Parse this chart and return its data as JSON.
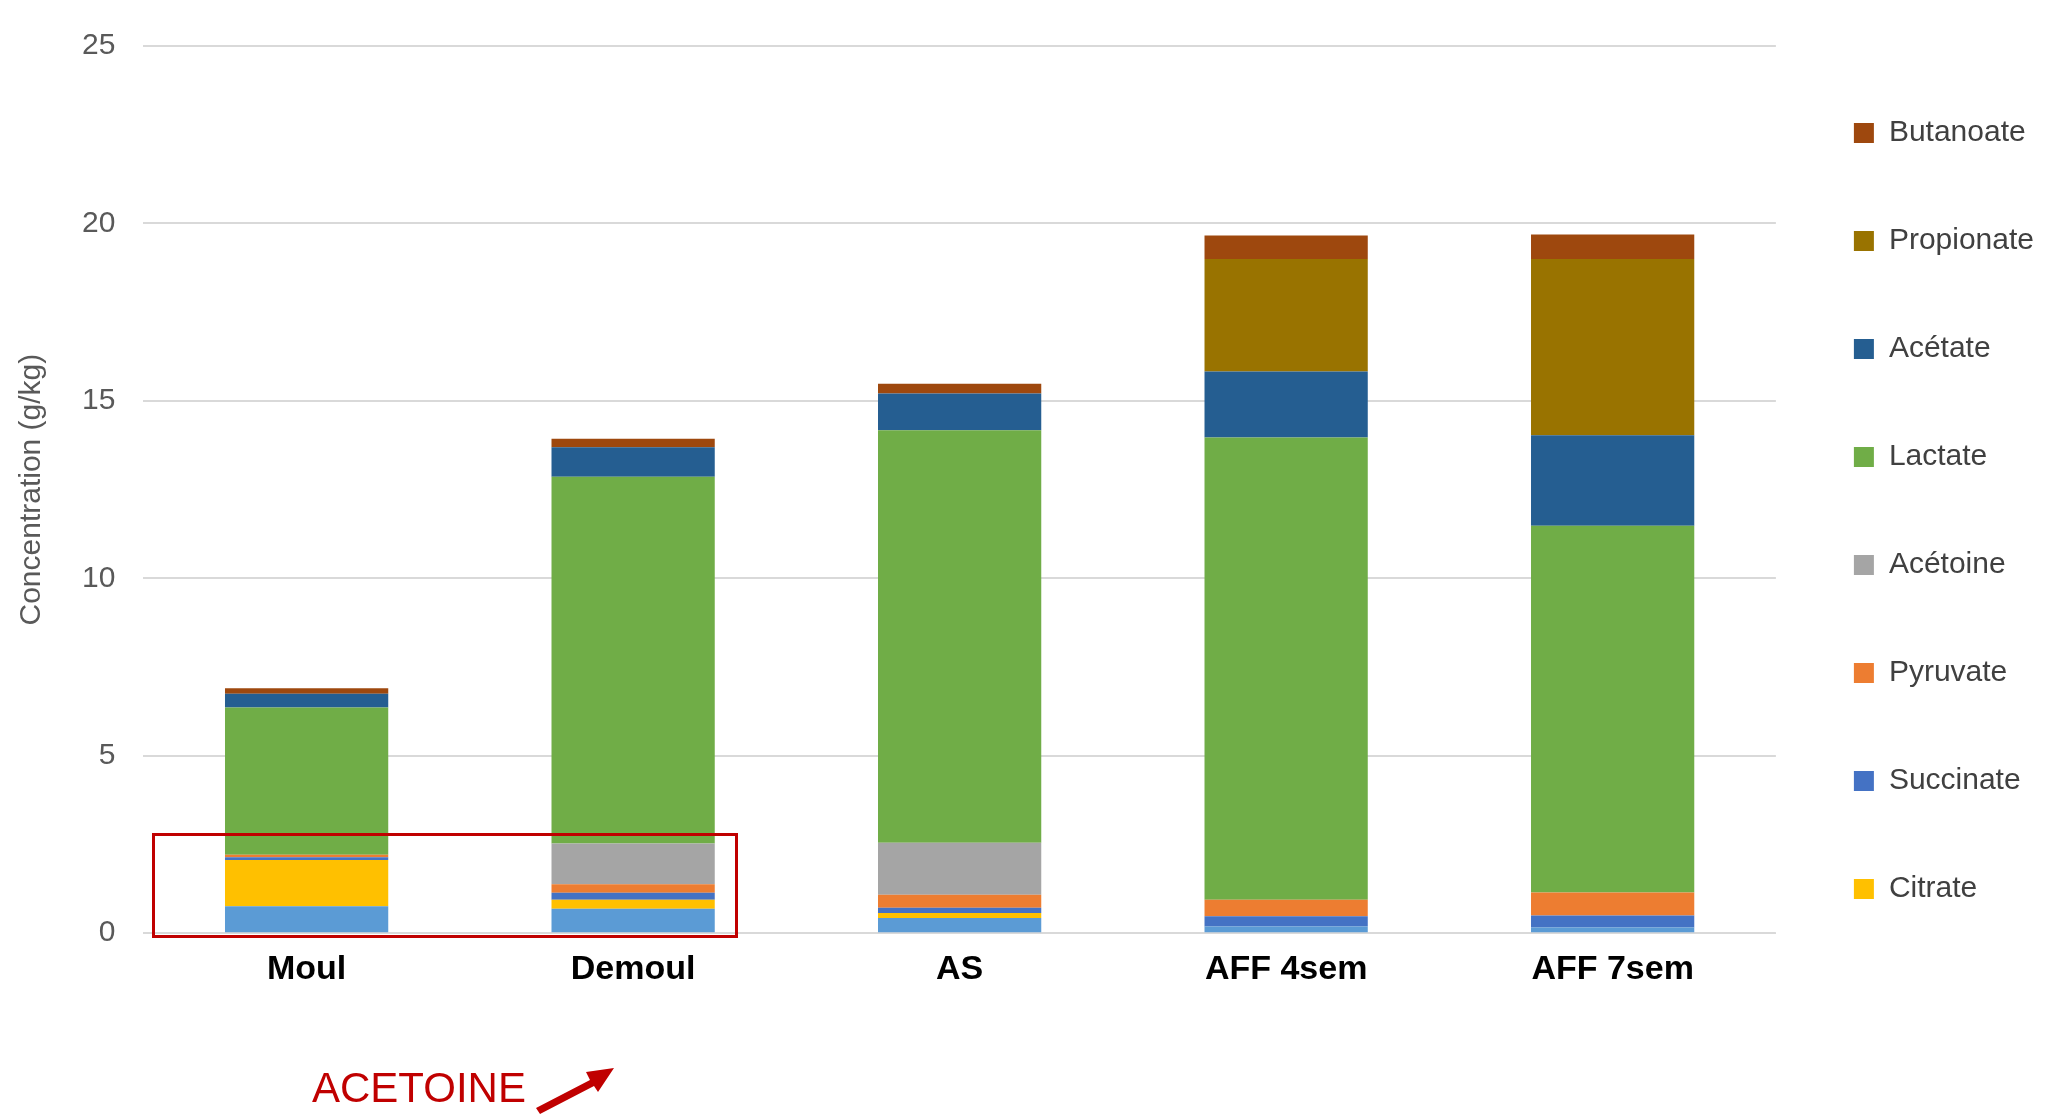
{
  "chart_data": {
    "type": "bar",
    "stacked": true,
    "ylabel": "Concentration (g/kg)",
    "categories": [
      "Moul",
      "Demoul",
      "AS",
      "AFF 4sem",
      "AFF 7sem"
    ],
    "series": [
      {
        "color": "#5b9bd5",
        "values": [
          0.76,
          0.69,
          0.43,
          0.19,
          0.16
        ]
      },
      {
        "name": "Citrate",
        "color": "#ffc000",
        "values": [
          1.3,
          0.25,
          0.14,
          0,
          0
        ]
      },
      {
        "name": "Succinate",
        "color": "#4472c4",
        "values": [
          0.08,
          0.2,
          0.15,
          0.29,
          0.34
        ]
      },
      {
        "name": "Pyruvate",
        "color": "#ed7d31",
        "values": [
          0.07,
          0.24,
          0.36,
          0.46,
          0.65
        ]
      },
      {
        "name": "Acétoine",
        "color": "#a5a5a5",
        "values": [
          0,
          1.15,
          1.47,
          0,
          0
        ]
      },
      {
        "name": "Lactate",
        "color": "#70ad47",
        "values": [
          4.15,
          10.33,
          11.62,
          13.03,
          10.33
        ]
      },
      {
        "name": "Acétate",
        "color": "#255e91",
        "values": [
          0.39,
          0.83,
          1.04,
          1.86,
          2.55
        ]
      },
      {
        "name": "Propionate",
        "color": "#997300",
        "values": [
          0,
          0,
          0,
          3.17,
          4.97
        ]
      },
      {
        "name": "Butanoate",
        "color": "#9e480e",
        "values": [
          0.15,
          0.24,
          0.27,
          0.66,
          0.69
        ]
      }
    ],
    "ylim": [
      0,
      25
    ],
    "yticks": [
      0,
      5,
      10,
      15,
      20,
      25
    ],
    "grid": "y",
    "legend": "right",
    "annotations": [
      "ACETOINE"
    ]
  }
}
